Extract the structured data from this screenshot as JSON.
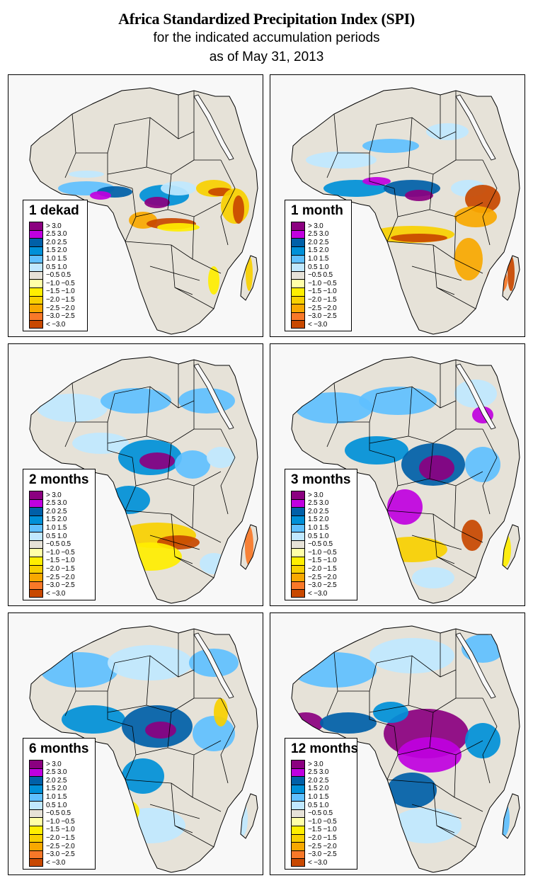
{
  "title": {
    "main": "Africa Standardized Precipitation Index (SPI)",
    "subtitle": "for the indicated accumulation periods",
    "date": "as of May 31, 2013"
  },
  "legend_classes": [
    {
      "label": "> 3.0",
      "color": "#8b0080"
    },
    {
      "label": "2.5  3.0",
      "color": "#c000e0"
    },
    {
      "label": "2.0  2.5",
      "color": "#0060a8"
    },
    {
      "label": "1.5  2.0",
      "color": "#0090d8"
    },
    {
      "label": "1.0  1.5",
      "color": "#60c0ff"
    },
    {
      "label": "0.5  1.0",
      "color": "#c0e8ff"
    },
    {
      "label": "−0.5  0.5",
      "color": "#e6e2d8"
    },
    {
      "label": "−1.0 −0.5",
      "color": "#ffffa8"
    },
    {
      "label": "−1.5 −1.0",
      "color": "#ffee00"
    },
    {
      "label": "−2.0 −1.5",
      "color": "#f8d000"
    },
    {
      "label": "−2.5 −2.0",
      "color": "#f8a800"
    },
    {
      "label": "−3.0 −2.5",
      "color": "#f87828"
    },
    {
      "label": "< −3.0",
      "color": "#c84800"
    }
  ],
  "panels": [
    {
      "label": "1 dekad",
      "dominant": [
        "neutral",
        "wet west/central Africa bands",
        "dry east Africa and south-central bands"
      ]
    },
    {
      "label": "1 month",
      "dominant": [
        "wet Sahel/central Africa",
        "dry south-central and east Africa"
      ]
    },
    {
      "label": "2 months",
      "dominant": [
        "wet central Africa",
        "dry southern Africa and Madagascar"
      ]
    },
    {
      "label": "3 months",
      "dominant": [
        "very wet Congo basin",
        "dry Mozambique/Zimbabwe"
      ]
    },
    {
      "label": "6 months",
      "dominant": [
        "broadly wet north and central Africa"
      ]
    },
    {
      "label": "12 months",
      "dominant": [
        "extremely wet central and west Africa"
      ]
    }
  ]
}
